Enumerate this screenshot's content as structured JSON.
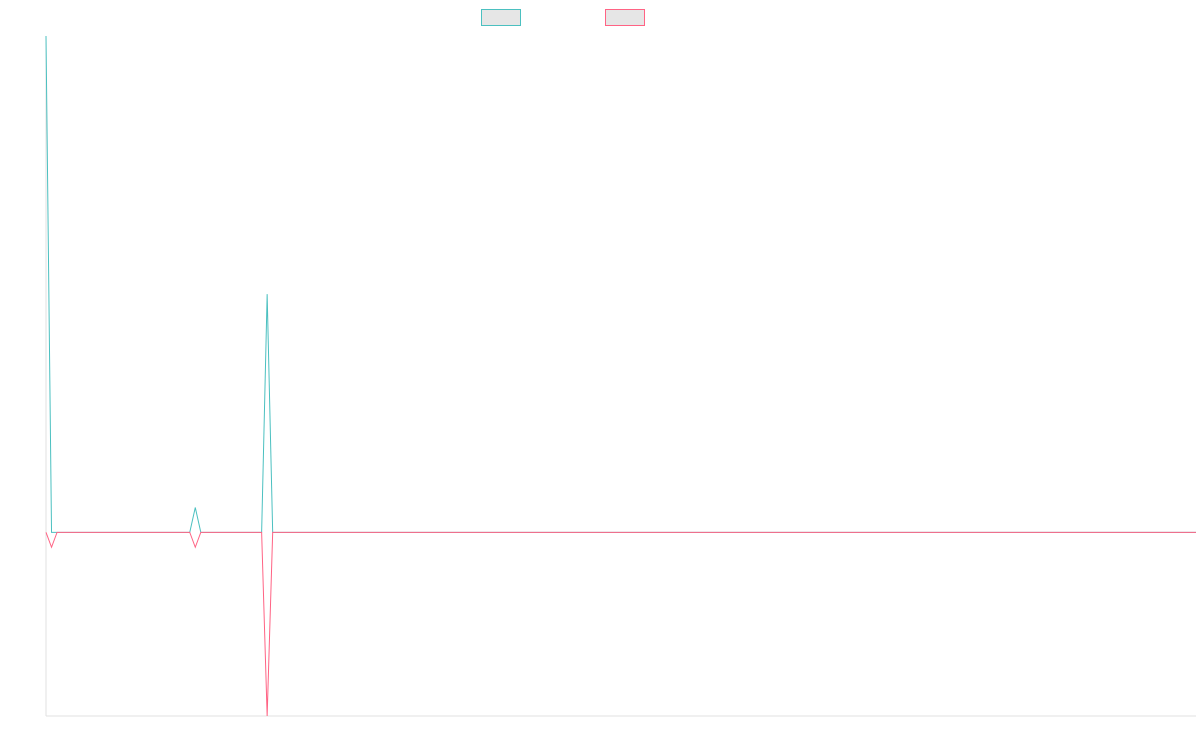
{
  "chart_data": {
    "type": "line",
    "x": [
      0,
      1,
      2,
      3,
      4,
      5,
      6,
      7,
      8,
      9,
      10,
      11,
      12,
      13,
      14,
      15,
      16,
      17,
      18,
      19,
      20,
      21,
      22,
      23,
      24,
      25,
      26,
      27,
      28,
      29,
      30,
      31,
      32,
      33,
      34,
      35,
      36,
      37,
      38,
      39,
      40,
      41,
      42,
      43,
      44,
      45,
      46,
      47,
      48,
      49,
      50,
      51,
      52,
      53,
      54,
      55,
      56,
      57,
      58,
      59,
      60,
      61,
      62,
      63,
      64,
      65,
      66,
      67,
      68,
      69,
      70,
      71,
      72,
      73,
      74,
      75,
      76,
      77,
      78,
      79,
      80,
      81,
      82,
      83,
      84,
      85,
      86,
      87,
      88,
      89,
      90,
      91,
      92,
      93,
      94,
      95,
      96,
      97,
      98,
      99,
      100,
      101,
      102,
      103,
      104,
      105,
      106,
      107,
      108,
      109,
      110,
      111,
      112,
      113,
      114,
      115,
      116,
      117,
      118,
      119,
      120,
      121,
      122,
      123,
      124,
      125,
      126,
      127,
      128,
      129,
      130,
      131,
      132,
      133,
      134,
      135,
      136,
      137,
      138,
      139,
      140,
      141,
      142,
      143,
      144,
      145,
      146,
      147,
      148,
      149,
      150,
      151,
      152,
      153,
      154,
      155,
      156,
      157,
      158,
      159,
      160,
      161,
      162,
      163,
      164,
      165,
      166,
      167,
      168,
      169,
      170,
      171,
      172,
      173,
      174,
      175,
      176,
      177,
      178,
      179,
      180,
      181,
      182,
      183,
      184,
      185,
      186,
      187,
      188,
      189,
      190,
      191,
      192,
      193,
      194,
      195,
      196,
      197,
      198,
      199,
      200,
      201,
      202,
      203,
      204,
      205,
      206,
      207,
      208
    ],
    "series": [
      {
        "color": "#4bc0c0",
        "fill": "#e6e6e6",
        "values": [
          100,
          0,
          0,
          0,
          0,
          0,
          0,
          0,
          0,
          0,
          0,
          0,
          0,
          0,
          0,
          0,
          0,
          0,
          0,
          0,
          0,
          0,
          0,
          0,
          0,
          0,
          0,
          5,
          0,
          0,
          0,
          0,
          0,
          0,
          0,
          0,
          0,
          0,
          0,
          0,
          48,
          0,
          0,
          0,
          0,
          0,
          0,
          0,
          0,
          0,
          0,
          0,
          0,
          0,
          0,
          0,
          0,
          0,
          0,
          0,
          0,
          0,
          0,
          0,
          0,
          0,
          0,
          0,
          0,
          0,
          0,
          0,
          0,
          0,
          0,
          0,
          0,
          0,
          0,
          0,
          0,
          0,
          0,
          0,
          0,
          0,
          0,
          0,
          0,
          0,
          0,
          0,
          0,
          0,
          0,
          0,
          0,
          0,
          0,
          0,
          0,
          0,
          0,
          0,
          0,
          0,
          0,
          0,
          0,
          0,
          0,
          0,
          0,
          0,
          0,
          0,
          0,
          0,
          0,
          0,
          0,
          0,
          0,
          0,
          0,
          0,
          0,
          0,
          0,
          0,
          0,
          0,
          0,
          0,
          0,
          0,
          0,
          0,
          0,
          0,
          0,
          0,
          0,
          0,
          0,
          0,
          0,
          0,
          0,
          0,
          0,
          0,
          0,
          0,
          0,
          0,
          0,
          0,
          0,
          0,
          0,
          0,
          0,
          0,
          0,
          0,
          0,
          0,
          0,
          0,
          0,
          0,
          0,
          0,
          0,
          0,
          0,
          0,
          0,
          0,
          0,
          0,
          0,
          0,
          0,
          0,
          0,
          0,
          0,
          0,
          0,
          0,
          0,
          0,
          0,
          0,
          0,
          0,
          0,
          0,
          0,
          0,
          0,
          0,
          0,
          0,
          0,
          0,
          0
        ]
      },
      {
        "color": "#ff6384",
        "fill": "#e6e6e6",
        "values": [
          0,
          -3,
          0,
          0,
          0,
          0,
          0,
          0,
          0,
          0,
          0,
          0,
          0,
          0,
          0,
          0,
          0,
          0,
          0,
          0,
          0,
          0,
          0,
          0,
          0,
          0,
          0,
          -3,
          0,
          0,
          0,
          0,
          0,
          0,
          0,
          0,
          0,
          0,
          0,
          0,
          -37,
          0,
          0,
          0,
          0,
          0,
          0,
          0,
          0,
          0,
          0,
          0,
          0,
          0,
          0,
          0,
          0,
          0,
          0,
          0,
          0,
          0,
          0,
          0,
          0,
          0,
          0,
          0,
          0,
          0,
          0,
          0,
          0,
          0,
          0,
          0,
          0,
          0,
          0,
          0,
          0,
          0,
          0,
          0,
          0,
          0,
          0,
          0,
          0,
          0,
          0,
          0,
          0,
          0,
          0,
          0,
          0,
          0,
          0,
          0,
          0,
          0,
          0,
          0,
          0,
          0,
          0,
          0,
          0,
          0,
          0,
          0,
          0,
          0,
          0,
          0,
          0,
          0,
          0,
          0,
          0,
          0,
          0,
          0,
          0,
          0,
          0,
          0,
          0,
          0,
          0,
          0,
          0,
          0,
          0,
          0,
          0,
          0,
          0,
          0,
          0,
          0,
          0,
          0,
          0,
          0,
          0,
          0,
          0,
          0,
          0,
          0,
          0,
          0,
          0,
          0,
          0,
          0,
          0,
          0,
          0,
          0,
          0,
          0,
          0,
          0,
          0,
          0,
          0,
          0,
          0,
          0,
          0,
          0,
          0,
          0,
          0,
          0,
          0,
          0,
          0,
          0,
          0,
          0,
          0,
          0,
          0,
          0,
          0,
          0,
          0,
          0,
          0,
          0,
          0,
          0,
          0,
          0,
          0,
          0,
          0,
          0,
          0,
          0,
          0,
          0,
          0,
          0,
          0
        ]
      }
    ],
    "xlim": [
      0,
      208
    ],
    "ylim": [
      -37,
      100
    ],
    "grid": false,
    "legend_position": "top-center",
    "axis_color": "#e0e0e0"
  }
}
